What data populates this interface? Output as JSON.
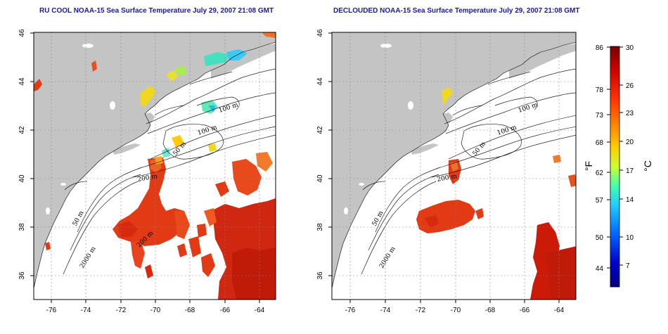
{
  "panels": [
    {
      "title": "RU COOL NOAA-15 Sea Surface Temperature July 29, 2007 21:08 GMT",
      "x_ticks": [
        "-76",
        "-74",
        "-72",
        "-70",
        "-68",
        "-66",
        "-64"
      ],
      "y_ticks": [
        "46",
        "44",
        "42",
        "40",
        "38",
        "36"
      ],
      "contour_labels": [
        "100 m",
        "100 m",
        "50 m",
        "200 m",
        "50 m",
        "2000 m",
        "200 m"
      ]
    },
    {
      "title": "DECLOUDED NOAA-15 Sea Surface Temperature July 29, 2007 21:08 GMT",
      "x_ticks": [
        "-76",
        "-74",
        "-72",
        "-70",
        "-68",
        "-66",
        "-64"
      ],
      "y_ticks": [
        "46",
        "44",
        "42",
        "40",
        "38",
        "36"
      ],
      "contour_labels": [
        "100 m",
        "100 m",
        "50 m",
        "200 m",
        "50 m",
        "2000 m"
      ]
    }
  ],
  "colorbar": {
    "fahrenheit_ticks": [
      "86",
      "78",
      "73",
      "68",
      "62",
      "57",
      "50",
      "44"
    ],
    "celsius_ticks": [
      "30",
      "26",
      "23",
      "20",
      "17",
      "14",
      "10",
      "7"
    ],
    "left_unit": "°F",
    "right_unit": "°C",
    "colors": [
      "#7a0000",
      "#d00000",
      "#ff3300",
      "#ff8800",
      "#ffcc00",
      "#ccff33",
      "#44ffaa",
      "#22ccff",
      "#0066ff",
      "#0000cc",
      "#000080"
    ]
  },
  "colors": {
    "land": "#c4c4c4",
    "ocean": "#ffffff",
    "title": "#1a1aa0",
    "warm": "#e83a1a",
    "hot": "#cc1100"
  }
}
